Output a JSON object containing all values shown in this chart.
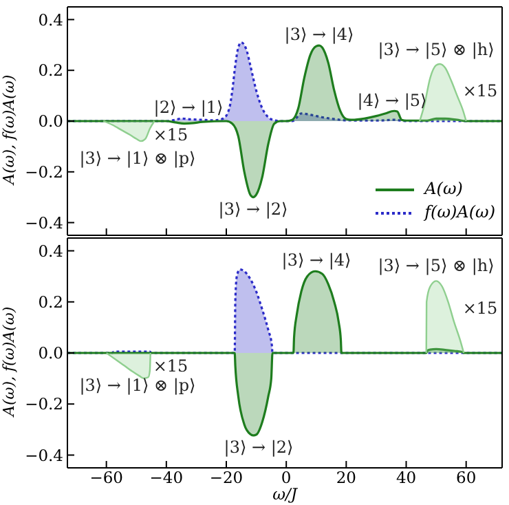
{
  "chart_data": [
    {
      "type": "area",
      "ylabel": "A(ω), f(ω)A(ω)",
      "xlim": [
        -73,
        72
      ],
      "xticks": [
        -60,
        -40,
        -20,
        0,
        20,
        40,
        60
      ],
      "ylim": [
        -0.45,
        0.45
      ],
      "yticks": [
        -0.4,
        -0.2,
        {
          "value": 0,
          "label": "0.0"
        },
        0.2,
        0.4
      ],
      "tick_labels": "y",
      "legend": "bottom right",
      "grid": false,
      "series": [
        {
          "name": "f(ω)A(ω)",
          "color": "#2b2bc8",
          "line_style": "dotted",
          "x": [
            -73,
            -40,
            -37,
            -35,
            -32,
            -28,
            -24,
            -21,
            -19,
            -18,
            -17,
            -16,
            -15,
            -14,
            -13,
            -12,
            -10,
            -8,
            -6,
            -4,
            -2,
            2,
            4,
            5,
            8,
            12,
            16,
            20,
            30,
            36,
            40,
            72
          ],
          "values": [
            0,
            0,
            0.005,
            0.01,
            0.007,
            0.005,
            0.003,
            0.01,
            0.05,
            0.12,
            0.22,
            0.29,
            0.31,
            0.3,
            0.27,
            0.22,
            0.12,
            0.05,
            0.015,
            0.003,
            0,
            0,
            0.02,
            0.03,
            0.025,
            0.015,
            0.008,
            0.003,
            0.002,
            0.005,
            0,
            0
          ]
        },
        {
          "name": "A(ω)",
          "color": "#1e7d1e",
          "line_style": "solid",
          "x": [
            -73,
            -40,
            -37,
            -34,
            -31,
            -28,
            -20,
            -18,
            -16,
            -14,
            -12,
            -11,
            -10,
            -8,
            -6,
            -4,
            -2,
            0,
            2,
            4,
            6,
            8,
            10,
            11,
            12,
            14,
            16,
            18,
            20,
            22,
            26,
            30,
            33,
            36,
            37,
            38.5,
            40,
            47,
            50,
            53,
            57,
            60,
            72
          ],
          "values": [
            0,
            0,
            -0.005,
            -0.01,
            -0.008,
            -0.003,
            0,
            -0.01,
            -0.06,
            -0.2,
            -0.29,
            -0.3,
            -0.29,
            -0.22,
            -0.09,
            -0.01,
            0,
            0,
            0.005,
            0.05,
            0.17,
            0.26,
            0.295,
            0.298,
            0.29,
            0.23,
            0.12,
            0.04,
            0.008,
            0.005,
            0.01,
            0.02,
            0.03,
            0.04,
            0.038,
            0.005,
            0.002,
            0.002,
            0.01,
            0.01,
            0.005,
            0,
            0
          ]
        },
        {
          "color": "#8fcf8f",
          "line_style": "solid",
          "x": [
            -61,
            -58,
            -55,
            -52,
            -50,
            -48.5,
            -47,
            -45.5,
            -44
          ],
          "values": [
            0,
            -0.015,
            -0.035,
            -0.055,
            -0.07,
            -0.079,
            -0.07,
            -0.03,
            0
          ]
        },
        {
          "color": "#8fcf8f",
          "line_style": "solid",
          "x": [
            44.5,
            46,
            48,
            50,
            51.2,
            53,
            55,
            57,
            59,
            60
          ],
          "values": [
            0,
            0.06,
            0.17,
            0.22,
            0.225,
            0.21,
            0.16,
            0.1,
            0.04,
            0
          ]
        }
      ],
      "annotations": [
        "|3⟩ → |4⟩",
        "|3⟩ → |5⟩ ⊗ |h⟩",
        "×15",
        "|4⟩ → |5⟩",
        "|2⟩ → |1⟩",
        "×15",
        "|3⟩ → |1⟩ ⊗ |p⟩",
        "|3⟩ → |2⟩"
      ]
    },
    {
      "type": "area",
      "xlabel": "ω/J",
      "ylabel": "A(ω), f(ω)A(ω)",
      "xlim": [
        -73,
        72
      ],
      "xticks": [
        -60,
        -40,
        -20,
        0,
        20,
        40,
        60
      ],
      "ylim": [
        -0.45,
        0.45
      ],
      "yticks": [
        -0.4,
        -0.2,
        {
          "value": 0,
          "label": "0.0"
        },
        0.2,
        0.4
      ],
      "grid": false,
      "series": [
        {
          "color": "#2b2bc8",
          "line_style": "dotted",
          "x": [
            -73,
            -58,
            -57.5,
            -45.5,
            -45,
            -17.2,
            -17,
            -16.5,
            -15.5,
            -14,
            -12,
            -10,
            -8,
            -6,
            -4.8,
            -4.6,
            72
          ],
          "values": [
            0,
            0,
            0.005,
            0.005,
            0,
            0,
            0.2,
            0.3,
            0.327,
            0.32,
            0.29,
            0.24,
            0.17,
            0.09,
            0.03,
            0,
            0
          ]
        },
        {
          "color": "#1e7d1e",
          "line_style": "solid",
          "x": [
            -73,
            -17.2,
            -17,
            -16,
            -14,
            -12,
            -11,
            -10,
            -8,
            -6,
            -5,
            -4.6,
            2.4,
            2.6,
            3.5,
            5,
            7,
            9.6,
            12,
            14,
            16,
            17.5,
            18.2,
            18.4,
            46.7,
            47,
            48,
            50,
            53,
            56,
            59,
            59.2,
            72
          ],
          "values": [
            0,
            0,
            -0.05,
            -0.17,
            -0.28,
            -0.318,
            -0.323,
            -0.32,
            -0.27,
            -0.17,
            -0.1,
            0,
            0,
            0.06,
            0.15,
            0.24,
            0.3,
            0.32,
            0.31,
            0.27,
            0.2,
            0.12,
            0.05,
            0,
            0,
            0.008,
            0.013,
            0.015,
            0.012,
            0.008,
            0.003,
            0,
            0
          ]
        },
        {
          "color": "#8fcf8f",
          "line_style": "solid",
          "x": [
            -60,
            -57,
            -54,
            -51,
            -49,
            -47.5,
            -46,
            -45.5,
            -45.3
          ],
          "values": [
            0,
            -0.025,
            -0.05,
            -0.075,
            -0.09,
            -0.099,
            -0.095,
            -0.07,
            0
          ]
        },
        {
          "color": "#8fcf8f",
          "line_style": "solid",
          "x": [
            46.7,
            46.8,
            48,
            50,
            52,
            54,
            56,
            58,
            59.2
          ],
          "values": [
            0,
            0.2,
            0.26,
            0.282,
            0.26,
            0.2,
            0.12,
            0.05,
            0
          ]
        }
      ],
      "annotations": [
        "|3⟩ → |4⟩",
        "|3⟩ → |5⟩ ⊗ |h⟩",
        "×15",
        "×15",
        "|3⟩ → |1⟩ ⊗ |p⟩",
        "|3⟩ → |2⟩"
      ]
    }
  ]
}
